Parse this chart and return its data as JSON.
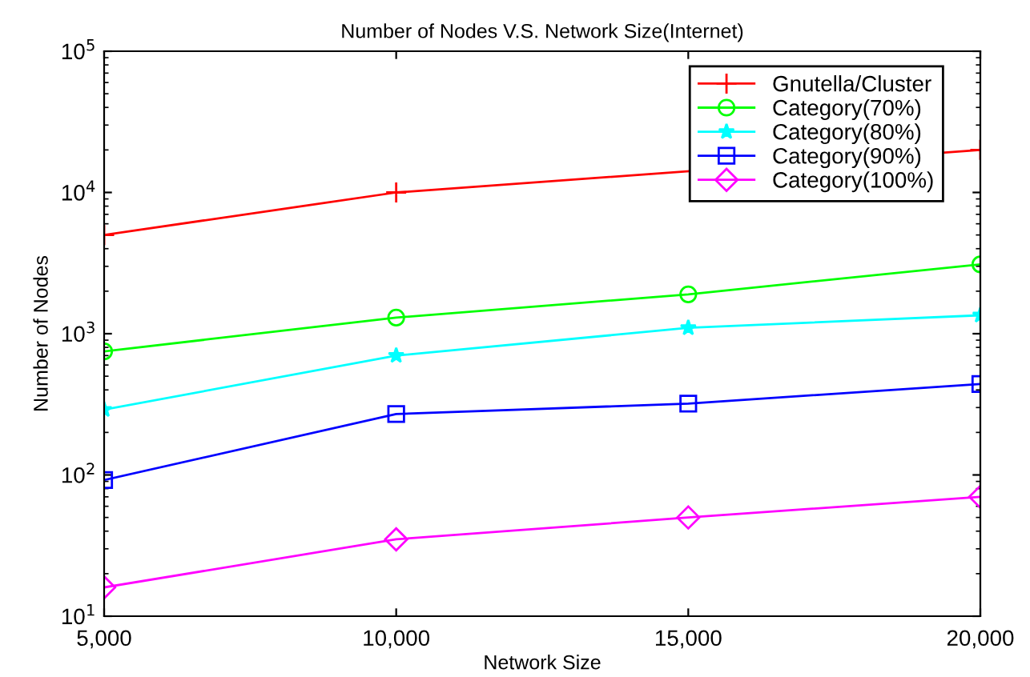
{
  "chart_data": {
    "type": "line",
    "title": "Number of Nodes V.S. Network Size(Internet)",
    "xlabel": "Network Size",
    "ylabel": "Number of Nodes",
    "x": [
      5000,
      10000,
      15000,
      20000
    ],
    "series": [
      {
        "name": "Gnutella/Cluster",
        "color": "#ff0000",
        "marker": "cross",
        "values": [
          5000,
          10000,
          null,
          20000
        ]
      },
      {
        "name": "Category(70%)",
        "color": "#00ff00",
        "marker": "circle",
        "values": [
          750,
          1300,
          1900,
          3100
        ]
      },
      {
        "name": "Category(80%)",
        "color": "#00ffff",
        "marker": "star",
        "values": [
          290,
          700,
          1100,
          1350
        ]
      },
      {
        "name": "Category(90%)",
        "color": "#0000ff",
        "marker": "square",
        "values": [
          92,
          270,
          320,
          440
        ]
      },
      {
        "name": "Category(100%)",
        "color": "#ff00ff",
        "marker": "diamond",
        "values": [
          16,
          35,
          50,
          70
        ]
      }
    ],
    "log": "y",
    "xlim": [
      5000,
      20000
    ],
    "ylim": [
      10,
      100000
    ],
    "xticks": [
      {
        "value": 5000,
        "label": "5,000"
      },
      {
        "value": 10000,
        "label": "10,000"
      },
      {
        "value": 15000,
        "label": "15,000"
      },
      {
        "value": 20000,
        "label": "20,000"
      }
    ],
    "yticks": [
      {
        "value": 10,
        "label": "10$^{1}$"
      },
      {
        "value": 100,
        "label": "10$^{2}$"
      },
      {
        "value": 1000,
        "label": "10$^{3}$"
      },
      {
        "value": 10000,
        "label": "10$^{4}$"
      },
      {
        "value": 100000,
        "label": "10$^{5}$"
      }
    ],
    "grid": false,
    "legend": "top right",
    "line_style": "solid"
  }
}
